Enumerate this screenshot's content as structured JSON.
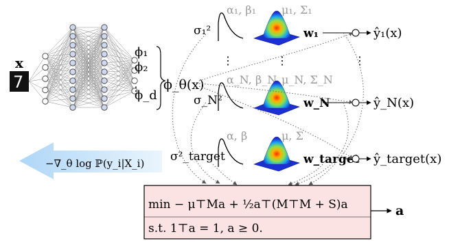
{
  "input": {
    "vector_label": "x",
    "digit": "7"
  },
  "features": {
    "phi1": "ϕ₁",
    "phi2": "ϕ₂",
    "phid": "ϕ_d",
    "map_label": "ϕ_θ(x)"
  },
  "gradient_label": "−∇_θ log ℙ(y_i|X_i)",
  "tasks": [
    {
      "sigma": "σ₁²",
      "alpha_beta": "α₁, β₁",
      "mu_sigma": "μ₁, Σ₁",
      "w": "w₁",
      "yhat": "ŷ₁(x)"
    },
    {
      "sigma": "σ_N²",
      "alpha_beta": "α_N, β_N",
      "mu_sigma": "μ_N, Σ_N",
      "w": "w_N",
      "yhat": "ŷ_N(x)"
    },
    {
      "sigma": "σ²_target",
      "alpha_beta": "α, β",
      "mu_sigma": "μ, Σ",
      "w": "w_target",
      "yhat": "ŷ_target(x)"
    }
  ],
  "ellipsis": "⋮",
  "optimization": {
    "objective": "min  − μ⊤Ma + ½a⊤(M⊤M + S)a",
    "constraint": "s.t.  1⊤a = 1, a ≥ 0.",
    "output": "a"
  }
}
